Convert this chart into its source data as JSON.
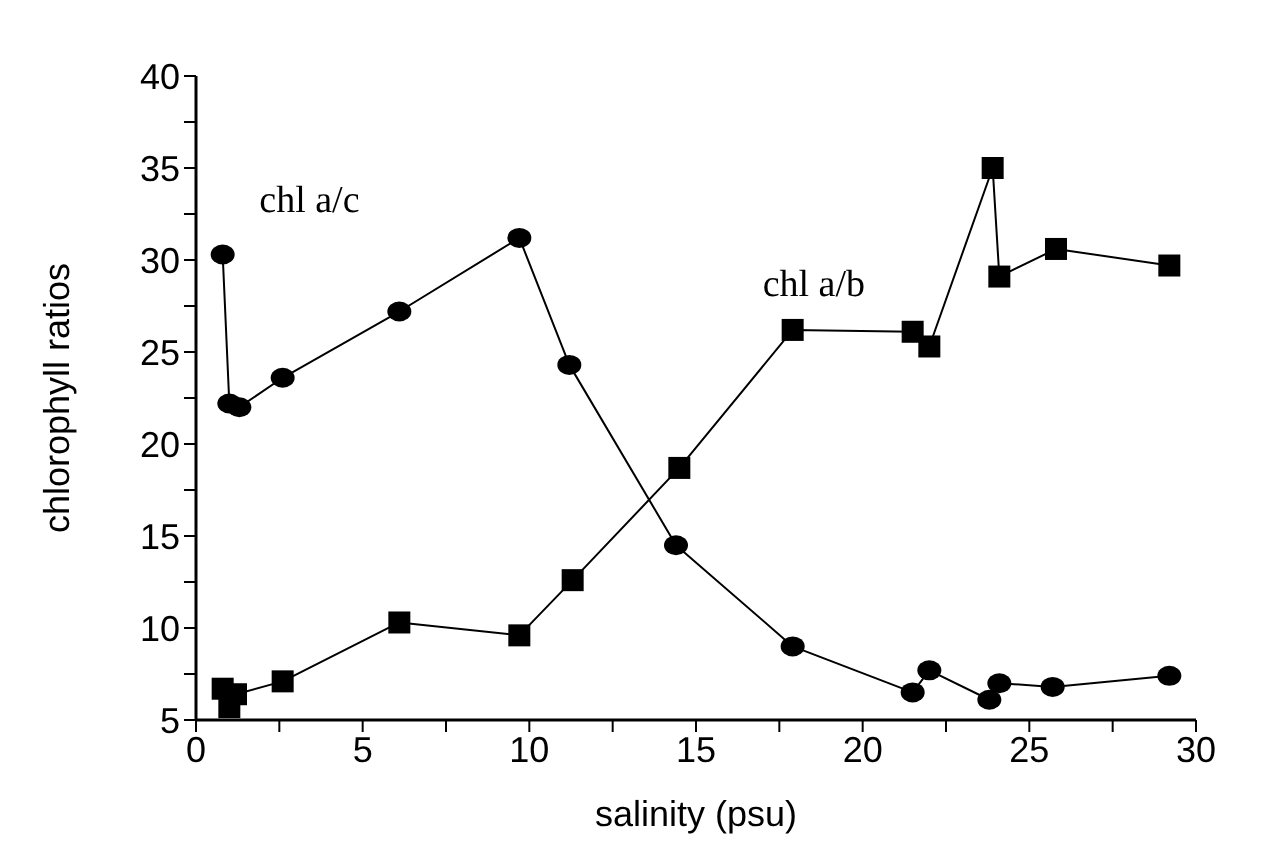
{
  "chart_data": {
    "type": "line",
    "xlabel": "salinity (psu)",
    "ylabel": "chlorophyll ratios",
    "xlim": [
      0,
      30
    ],
    "xticks": [
      0,
      {
        "value": 2.5,
        "label": null
      },
      5,
      {
        "value": 7.5,
        "label": null
      },
      10,
      {
        "value": 12.5,
        "label": null
      },
      15,
      {
        "value": 17.5,
        "label": null
      },
      20,
      {
        "value": 22.5,
        "label": null
      },
      25,
      {
        "value": 27.5,
        "label": null
      },
      30
    ],
    "ylim": [
      5,
      40
    ],
    "yticks": [
      5,
      {
        "value": 7.5,
        "label": null
      },
      10,
      {
        "value": 12.5,
        "label": null
      },
      15,
      {
        "value": 17.5,
        "label": null
      },
      20,
      {
        "value": 22.5,
        "label": null
      },
      25,
      {
        "value": 27.5,
        "label": null
      },
      30,
      {
        "value": 32.5,
        "label": null
      },
      35,
      {
        "value": 37.5,
        "label": null
      },
      40
    ],
    "grid": false,
    "legend": false,
    "series": [
      {
        "name": "chl a/c",
        "color": "#000000",
        "marker": "circle",
        "x": [
          0.8,
          1.0,
          1.3,
          2.6,
          6.1,
          9.7,
          11.2,
          14.4,
          17.9,
          21.5,
          22.0,
          23.8,
          24.1,
          25.7,
          29.2
        ],
        "values": [
          30.3,
          22.2,
          22.0,
          23.6,
          27.2,
          31.2,
          24.3,
          14.5,
          9.0,
          6.5,
          7.7,
          6.1,
          7.0,
          6.8,
          7.4
        ]
      },
      {
        "name": "chl a/b",
        "color": "#000000",
        "marker": "square",
        "x": [
          0.8,
          1.0,
          1.2,
          2.6,
          6.1,
          9.7,
          11.3,
          14.5,
          17.9,
          21.5,
          22.0,
          23.9,
          24.1,
          25.8,
          29.2
        ],
        "values": [
          6.7,
          5.7,
          6.4,
          7.1,
          10.3,
          9.6,
          12.6,
          18.7,
          26.2,
          26.1,
          25.3,
          35.0,
          29.1,
          30.6,
          29.7
        ]
      }
    ]
  }
}
